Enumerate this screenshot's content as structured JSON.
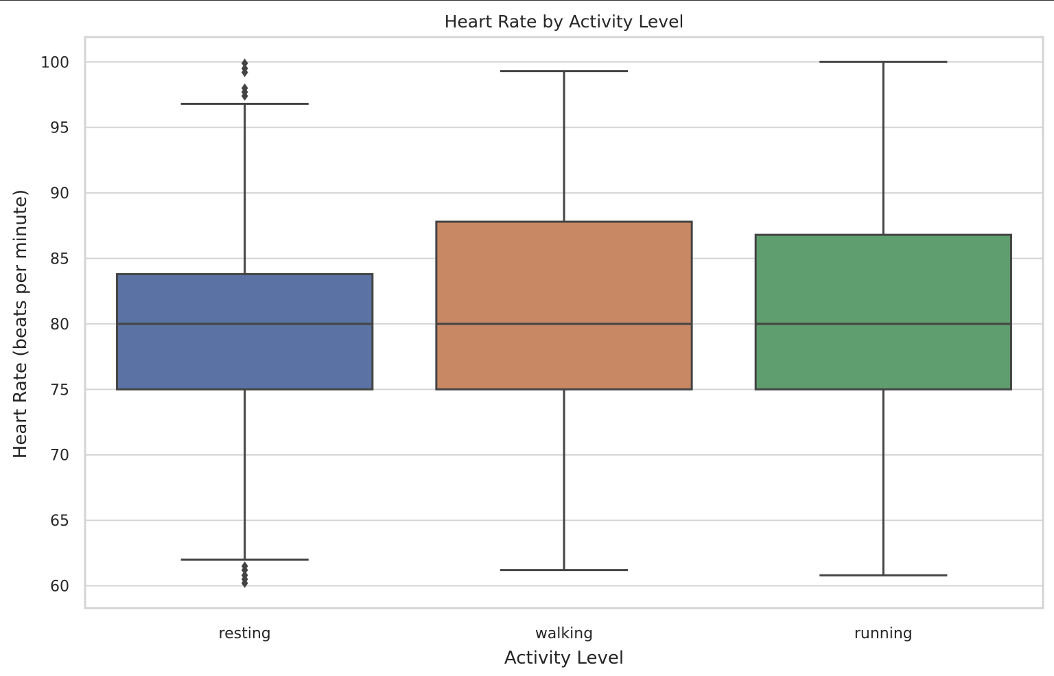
{
  "chart_data": {
    "type": "box",
    "title": "Heart Rate by Activity Level",
    "xlabel": "Activity Level",
    "ylabel": "Heart Rate (beats per minute)",
    "ylim": [
      58.3,
      101.9
    ],
    "yticks": [
      60,
      65,
      70,
      75,
      80,
      85,
      90,
      95,
      100
    ],
    "grid": true,
    "categories": [
      "resting",
      "walking",
      "running"
    ],
    "series": [
      {
        "category": "resting",
        "color": "#5b73a4",
        "whisker_low": 62.0,
        "q1": 75.0,
        "median": 80.0,
        "q3": 83.8,
        "whisker_high": 96.8,
        "outliers": [
          97.4,
          97.7,
          98.0,
          99.2,
          99.5,
          99.9,
          60.2,
          60.5,
          60.8,
          61.2,
          61.5
        ]
      },
      {
        "category": "walking",
        "color": "#c98864",
        "whisker_low": 61.2,
        "q1": 75.0,
        "median": 80.0,
        "q3": 87.8,
        "whisker_high": 99.3,
        "outliers": []
      },
      {
        "category": "running",
        "color": "#5f9e6e",
        "whisker_low": 60.8,
        "q1": 75.0,
        "median": 80.0,
        "q3": 86.8,
        "whisker_high": 100.0,
        "outliers": []
      }
    ]
  }
}
